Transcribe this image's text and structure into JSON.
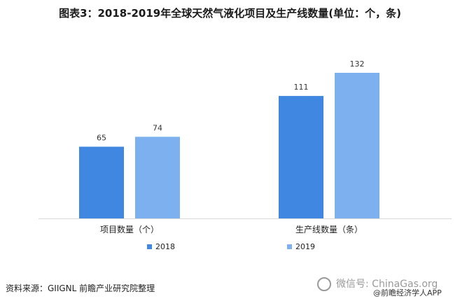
{
  "title": "图表3：2018-2019年全球天然气液化项目及生产线数量(单位：个，条)",
  "source": "资料来源：GIIGNL 前瞻产业研究院整理",
  "watermark": {
    "text": "微信号: ChinaGas.org",
    "sub": "@前瞻经济学人APP"
  },
  "colors": {
    "s2018": "#3f87e0",
    "s2019": "#7db0ee"
  },
  "chart_data": {
    "type": "bar",
    "title": "图表3：2018-2019年全球天然气液化项目及生产线数量(单位：个，条)",
    "categories": [
      "项目数量（个）",
      "生产线数量（条）"
    ],
    "series": [
      {
        "name": "2018",
        "values": [
          65,
          111
        ]
      },
      {
        "name": "2019",
        "values": [
          74,
          132
        ]
      }
    ],
    "ylim": [
      0,
      132
    ],
    "grid": false,
    "legend": "bottom"
  }
}
